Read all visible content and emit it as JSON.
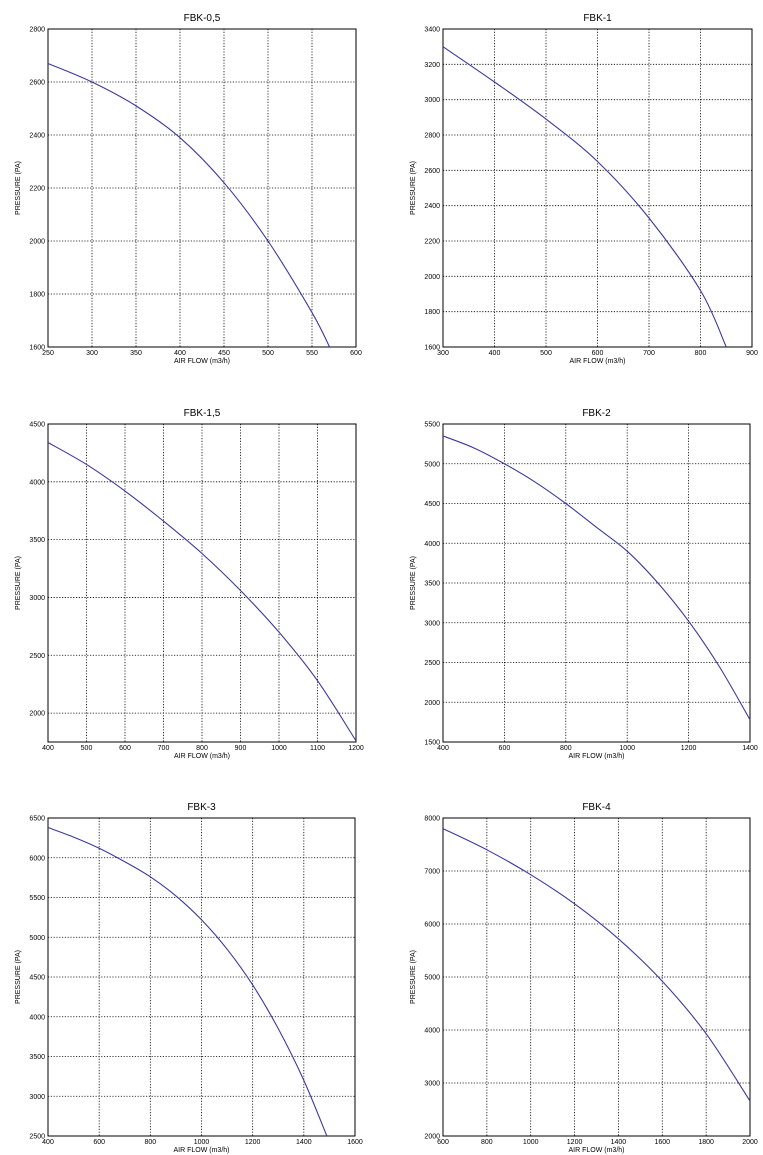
{
  "chart_data": [
    {
      "type": "line",
      "title": "FBK-0,5",
      "xlabel": "AIR FLOW (m3/h)",
      "ylabel": "PRESSURE (PA)",
      "xlim": [
        250,
        600
      ],
      "ylim": [
        1600,
        2800
      ],
      "xticks": [
        "250",
        "300",
        "350",
        "400",
        "450",
        "500",
        "550",
        "600"
      ],
      "yticks": [
        "1600",
        "1800",
        "2000",
        "2200",
        "2400",
        "2600",
        "2800"
      ],
      "grid": true,
      "series": [
        {
          "color": "#3a3aa0",
          "x": [
            250,
            300,
            350,
            400,
            450,
            500,
            550,
            570
          ],
          "y": [
            2670,
            2600,
            2510,
            2390,
            2220,
            2000,
            1730,
            1600
          ]
        }
      ]
    },
    {
      "type": "line",
      "title": "FBK-1",
      "xlabel": "AIR FLOW (m3/h)",
      "ylabel": "PRESSURE (PA)",
      "xlim": [
        300,
        900
      ],
      "ylim": [
        1600,
        3400
      ],
      "xticks": [
        "300",
        "400",
        "500",
        "600",
        "700",
        "800",
        "900"
      ],
      "yticks": [
        "1600",
        "1800",
        "2000",
        "2200",
        "2400",
        "2600",
        "2800",
        "3000",
        "3200",
        "3400"
      ],
      "grid": true,
      "series": [
        {
          "color": "#3a3aa0",
          "x": [
            300,
            400,
            500,
            600,
            700,
            800,
            850
          ],
          "y": [
            3300,
            3100,
            2890,
            2650,
            2330,
            1920,
            1600
          ]
        }
      ]
    },
    {
      "type": "line",
      "title": "FBK-1,5",
      "xlabel": "AIR FLOW (m3/h)",
      "ylabel": "PRESSURE (PA)",
      "xlim": [
        400,
        1200
      ],
      "ylim": [
        1750,
        4500
      ],
      "xticks": [
        "400",
        "500",
        "600",
        "700",
        "800",
        "900",
        "1000",
        "1100",
        "1200"
      ],
      "yticks": [
        "2000",
        "2500",
        "3000",
        "3500",
        "4000",
        "4500"
      ],
      "grid": true,
      "series": [
        {
          "color": "#3a3aa0",
          "x": [
            400,
            500,
            600,
            700,
            800,
            900,
            1000,
            1100,
            1200
          ],
          "y": [
            4340,
            4150,
            3920,
            3660,
            3380,
            3060,
            2700,
            2280,
            1760
          ]
        }
      ]
    },
    {
      "type": "line",
      "title": "FBK-2",
      "xlabel": "AIR FLOW (m3/h)",
      "ylabel": "PRESSURE (PA)",
      "xlim": [
        400,
        1400
      ],
      "ylim": [
        1500,
        5500
      ],
      "xticks": [
        "400",
        "600",
        "800",
        "1000",
        "1200",
        "1400"
      ],
      "yticks": [
        "1500",
        "2000",
        "2500",
        "3000",
        "3500",
        "4000",
        "4500",
        "5000",
        "5500"
      ],
      "grid": true,
      "series": [
        {
          "color": "#3a3aa0",
          "x": [
            400,
            500,
            600,
            700,
            800,
            900,
            1000,
            1100,
            1200,
            1300,
            1400
          ],
          "y": [
            5350,
            5200,
            5000,
            4770,
            4500,
            4200,
            3900,
            3500,
            3020,
            2450,
            1780
          ]
        }
      ]
    },
    {
      "type": "line",
      "title": "FBK-3",
      "xlabel": "AIR FLOW (m3/h)",
      "ylabel": "PRESSURE (PA)",
      "xlim": [
        400,
        1600
      ],
      "ylim": [
        2500,
        6500
      ],
      "xticks": [
        "400",
        "600",
        "800",
        "1000",
        "1200",
        "1400",
        "1600"
      ],
      "yticks": [
        "2500",
        "3000",
        "3500",
        "4000",
        "4500",
        "5000",
        "5500",
        "6000",
        "6500"
      ],
      "grid": true,
      "series": [
        {
          "color": "#3a3aa0",
          "x": [
            400,
            500,
            600,
            700,
            800,
            900,
            1000,
            1100,
            1200,
            1300,
            1400,
            1490
          ],
          "y": [
            6380,
            6260,
            6120,
            5950,
            5760,
            5520,
            5220,
            4850,
            4400,
            3850,
            3200,
            2500
          ]
        }
      ]
    },
    {
      "type": "line",
      "title": "FBK-4",
      "xlabel": "AIR FLOW (m3/h)",
      "ylabel": "PRESSURE (PA)",
      "xlim": [
        600,
        2000
      ],
      "ylim": [
        2000,
        8000
      ],
      "xticks": [
        "600",
        "800",
        "1000",
        "1200",
        "1400",
        "1600",
        "1800",
        "2000"
      ],
      "yticks": [
        "2000",
        "3000",
        "4000",
        "5000",
        "6000",
        "7000",
        "8000"
      ],
      "grid": true,
      "series": [
        {
          "color": "#3a3aa0",
          "x": [
            600,
            800,
            1000,
            1200,
            1400,
            1600,
            1800,
            2000
          ],
          "y": [
            7800,
            7400,
            6930,
            6380,
            5720,
            4920,
            3930,
            2660
          ]
        }
      ]
    }
  ]
}
